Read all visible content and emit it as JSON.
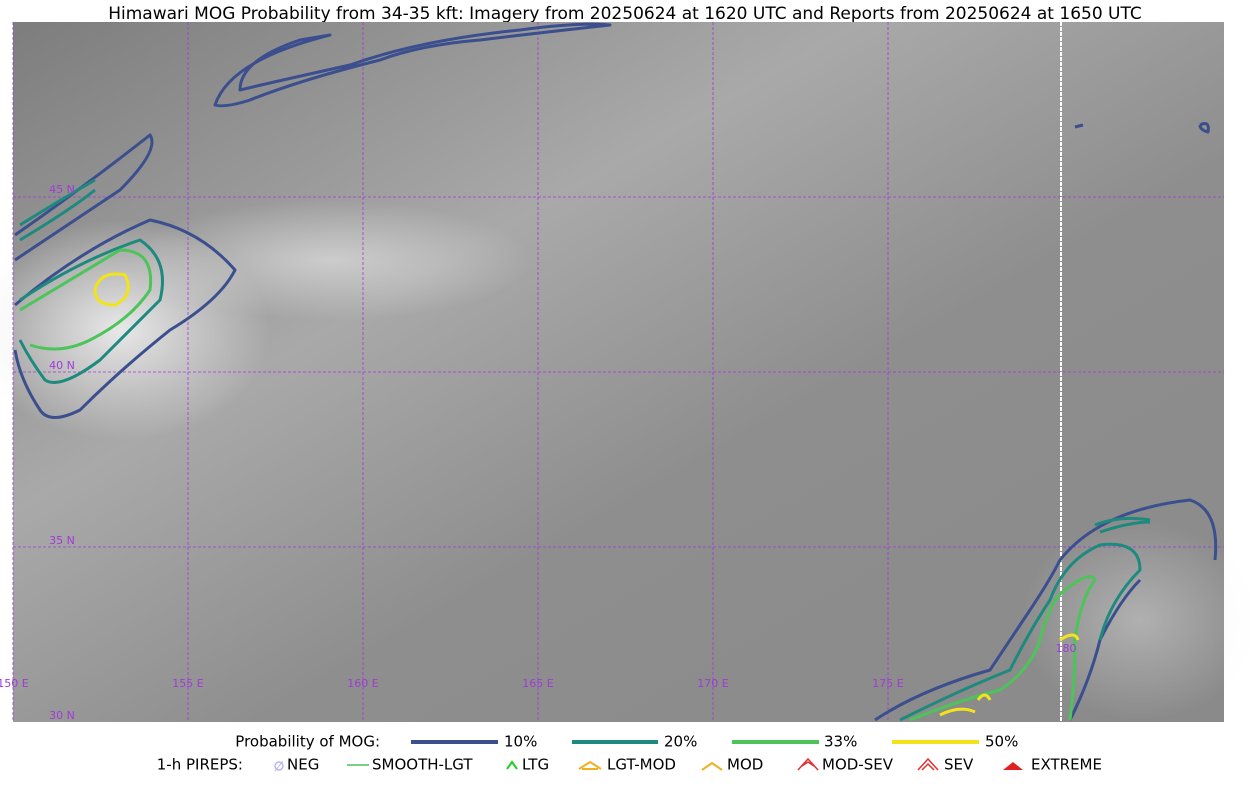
{
  "title": "Himawari MOG Probability from 34-35 kft: Imagery from 20250624 at 1620 UTC and Reports from 20250624 at 1650 UTC",
  "map": {
    "lat_labels": [
      "45 N",
      "40 N",
      "35 N",
      "30 N"
    ],
    "lon_labels": [
      "150 E",
      "155 E",
      "160 E",
      "165 E",
      "170 E",
      "175 E",
      "180"
    ]
  },
  "legend": {
    "probability": {
      "label": "Probability of MOG:",
      "items": [
        "10%",
        "20%",
        "33%",
        "50%"
      ]
    },
    "pireps": {
      "label": "1-h PIREPS:",
      "items": [
        "NEG",
        "SMOOTH-LGT",
        "LTG",
        "LGT-MOD",
        "MOD",
        "MOD-SEV",
        "SEV",
        "EXTREME"
      ]
    }
  }
}
